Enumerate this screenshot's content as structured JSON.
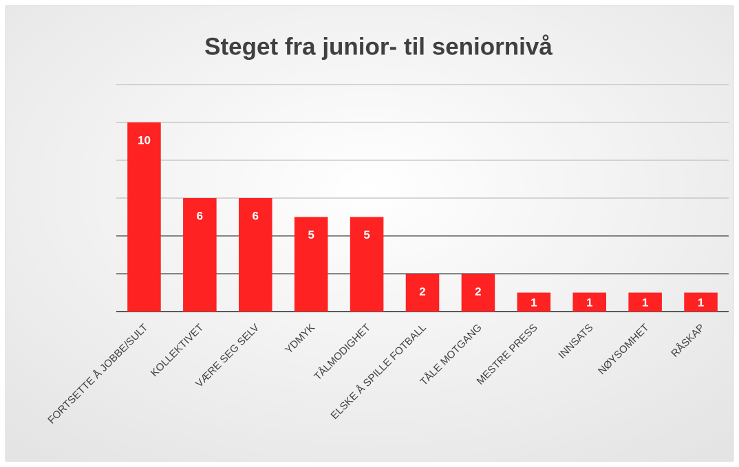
{
  "chart_data": {
    "type": "bar",
    "title": "Steget fra junior- til seniornivå",
    "categories": [
      "FORTSETTE Å JOBBE/SULT",
      "KOLLEKTIVET",
      "VÆRE SEG SELV",
      "YDMYK",
      "TÅLMODIGHET",
      "ELSKE Å SPILLE FOTBALL",
      "TÅLE MOTGANG",
      "MESTRE PRESS",
      "INNSATS",
      "NØYSOMHET",
      "RÅSKAP"
    ],
    "values": [
      10,
      6,
      6,
      5,
      5,
      2,
      2,
      1,
      1,
      1,
      1
    ],
    "color": "#fe2222",
    "ylim": [
      0,
      12
    ],
    "yticks": [
      0,
      2,
      4,
      6,
      8,
      10,
      12
    ],
    "grid": true
  }
}
